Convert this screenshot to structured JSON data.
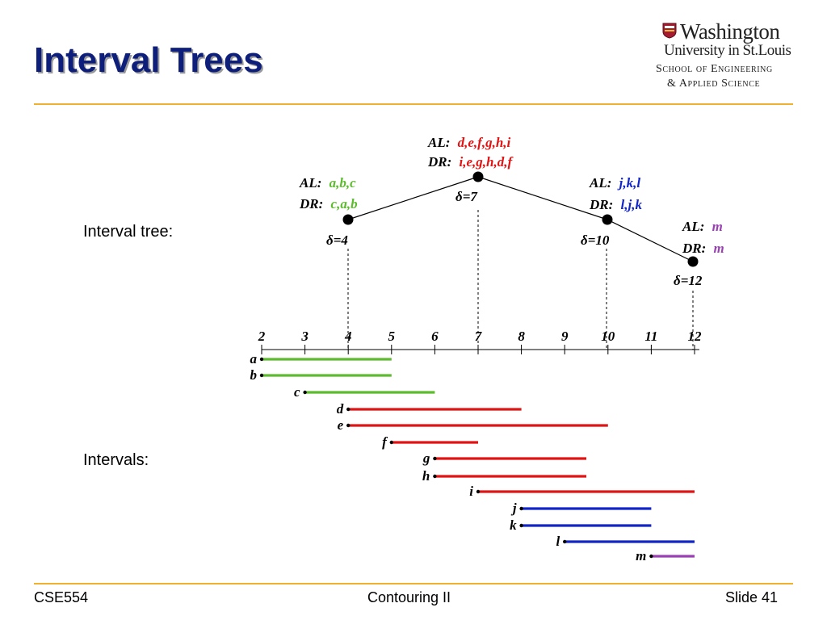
{
  "slide": {
    "title": "Interval Trees",
    "footer_left": "CSE554",
    "footer_center": "Contouring II",
    "footer_right": "Slide 41"
  },
  "logo": {
    "line1": "Washington",
    "line2": "University in St.Louis",
    "line3": "School of Engineering",
    "line4": "& Applied Science"
  },
  "labels": {
    "tree": "Interval tree:",
    "intervals": "Intervals:"
  },
  "colors": {
    "title": "#0d1f7a",
    "rule": "#f0b030",
    "green": "#5dbb2e",
    "red": "#e01414",
    "blue": "#1226c8",
    "purple": "#9a3fb4"
  },
  "tree": {
    "nodes": [
      {
        "id": "n7",
        "delta": "δ=7",
        "al_prefix": "AL:",
        "al": "d,e,f,g,h,i",
        "dr_prefix": "DR:",
        "dr": "i,e,g,h,d,f",
        "color": "#e01414"
      },
      {
        "id": "n4",
        "delta": "δ=4",
        "al_prefix": "AL:",
        "al": "a,b,c",
        "dr_prefix": "DR:",
        "dr": "c,a,b",
        "color": "#5dbb2e"
      },
      {
        "id": "n10",
        "delta": "δ=10",
        "al_prefix": "AL:",
        "al": "j,k,l",
        "dr_prefix": "DR:",
        "dr": "l,j,k",
        "color": "#1226c8"
      },
      {
        "id": "n12",
        "delta": "δ=12",
        "al_prefix": "AL:",
        "al": "m",
        "dr_prefix": "DR:",
        "dr": "m",
        "color": "#9a3fb4"
      }
    ]
  },
  "axis": {
    "ticks": [
      2,
      3,
      4,
      5,
      6,
      7,
      8,
      9,
      10,
      11,
      12
    ]
  },
  "intervals": [
    {
      "name": "a",
      "start": 2,
      "end": 5,
      "color": "#5dbb2e"
    },
    {
      "name": "b",
      "start": 2,
      "end": 5,
      "color": "#5dbb2e"
    },
    {
      "name": "c",
      "start": 3,
      "end": 6,
      "color": "#5dbb2e"
    },
    {
      "name": "d",
      "start": 4,
      "end": 8,
      "color": "#e01414"
    },
    {
      "name": "e",
      "start": 4,
      "end": 10,
      "color": "#e01414"
    },
    {
      "name": "f",
      "start": 5,
      "end": 7,
      "color": "#e01414"
    },
    {
      "name": "g",
      "start": 6,
      "end": 9.5,
      "color": "#e01414"
    },
    {
      "name": "h",
      "start": 6,
      "end": 9.5,
      "color": "#e01414"
    },
    {
      "name": "i",
      "start": 7,
      "end": 12,
      "color": "#e01414"
    },
    {
      "name": "j",
      "start": 8,
      "end": 11,
      "color": "#1226c8"
    },
    {
      "name": "k",
      "start": 8,
      "end": 11,
      "color": "#1226c8"
    },
    {
      "name": "l",
      "start": 9,
      "end": 12,
      "color": "#1226c8"
    },
    {
      "name": "m",
      "start": 11,
      "end": 12,
      "color": "#9a3fb4"
    }
  ]
}
